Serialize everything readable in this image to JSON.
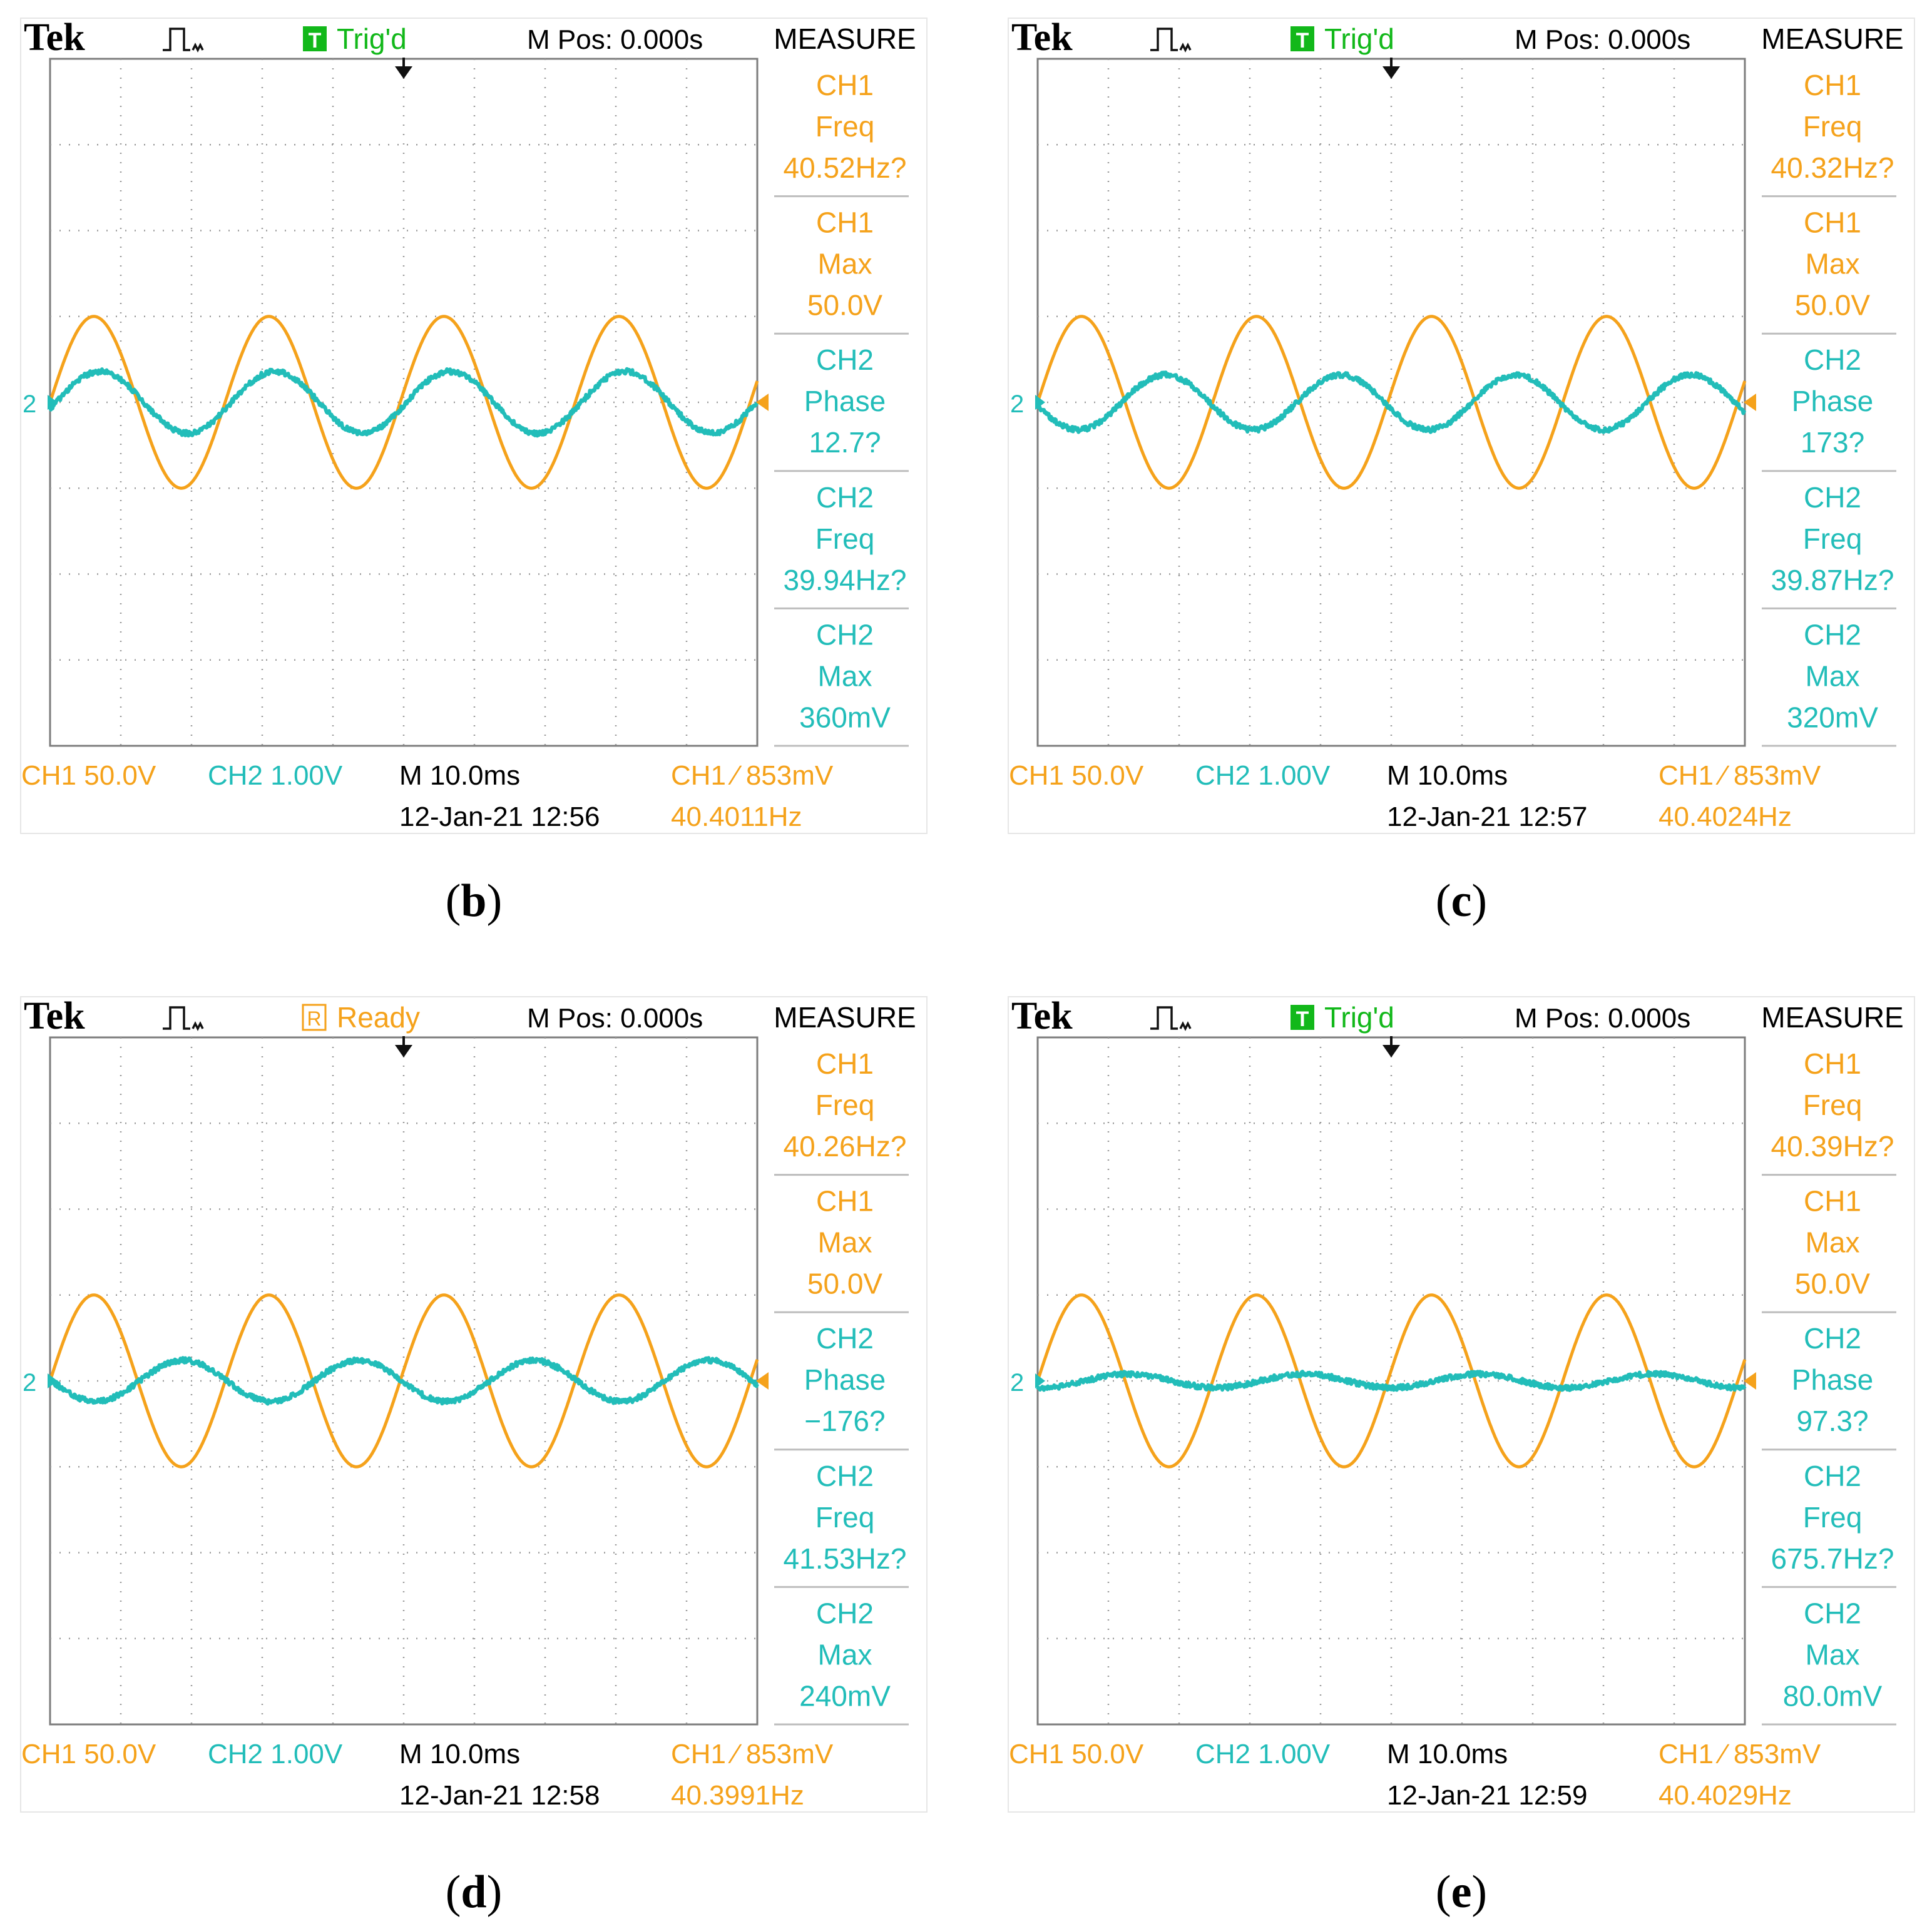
{
  "colors": {
    "ch1": "#F5A21B",
    "ch2": "#22BDB9",
    "grid": "#9a9a9a",
    "trig_green": "#12B81A",
    "text": "#000000"
  },
  "chart_data": [
    {
      "type": "line",
      "caption_letter": "b",
      "brand": "Tek",
      "trigger_status": "Trig'd",
      "trigger_badge": "T",
      "trigger_kind": "green",
      "mpos": "M Pos: 0.000s",
      "measure_title": "MEASURE",
      "measurements": [
        {
          "channel": "CH1",
          "name": "Freq",
          "value": "40.52Hz?",
          "color": "ch1"
        },
        {
          "channel": "CH1",
          "name": "Max",
          "value": "50.0V",
          "color": "ch1"
        },
        {
          "channel": "CH2",
          "name": "Phase",
          "value": "12.7?",
          "color": "ch2"
        },
        {
          "channel": "CH2",
          "name": "Freq",
          "value": "39.94Hz?",
          "color": "ch2"
        },
        {
          "channel": "CH2",
          "name": "Max",
          "value": "360mV",
          "color": "ch2"
        }
      ],
      "ch1_scale": "CH1  50.0V",
      "ch2_scale": "CH2  1.00V",
      "timebase": "M 10.0ms",
      "trigger_label": "CH1 ∕ 853mV",
      "datetime": "12-Jan-21 12:56",
      "trigger_freq": "40.4011Hz",
      "x_divisions": 10,
      "y_divisions": 8,
      "series": [
        {
          "channel": "CH1",
          "amplitude_div": 1.0,
          "phase_deg": 0,
          "cycles": 4.04
        },
        {
          "channel": "CH2",
          "amplitude_div": 0.36,
          "phase_deg": 12.7,
          "cycles": 4.04
        }
      ]
    },
    {
      "type": "line",
      "caption_letter": "c",
      "brand": "Tek",
      "trigger_status": "Trig'd",
      "trigger_badge": "T",
      "trigger_kind": "green",
      "mpos": "M Pos: 0.000s",
      "measure_title": "MEASURE",
      "measurements": [
        {
          "channel": "CH1",
          "name": "Freq",
          "value": "40.32Hz?",
          "color": "ch1"
        },
        {
          "channel": "CH1",
          "name": "Max",
          "value": "50.0V",
          "color": "ch1"
        },
        {
          "channel": "CH2",
          "name": "Phase",
          "value": "173?",
          "color": "ch2"
        },
        {
          "channel": "CH2",
          "name": "Freq",
          "value": "39.87Hz?",
          "color": "ch2"
        },
        {
          "channel": "CH2",
          "name": "Max",
          "value": "320mV",
          "color": "ch2"
        }
      ],
      "ch1_scale": "CH1  50.0V",
      "ch2_scale": "CH2  1.00V",
      "timebase": "M 10.0ms",
      "trigger_label": "CH1 ∕ 853mV",
      "datetime": "12-Jan-21 12:57",
      "trigger_freq": "40.4024Hz",
      "x_divisions": 10,
      "y_divisions": 8,
      "series": [
        {
          "channel": "CH1",
          "amplitude_div": 1.0,
          "phase_deg": 0,
          "cycles": 4.04
        },
        {
          "channel": "CH2",
          "amplitude_div": 0.32,
          "phase_deg": 173,
          "cycles": 4.04
        }
      ]
    },
    {
      "type": "line",
      "caption_letter": "d",
      "brand": "Tek",
      "trigger_status": "Ready",
      "trigger_badge": "R",
      "trigger_kind": "orange",
      "mpos": "M Pos: 0.000s",
      "measure_title": "MEASURE",
      "measurements": [
        {
          "channel": "CH1",
          "name": "Freq",
          "value": "40.26Hz?",
          "color": "ch1"
        },
        {
          "channel": "CH1",
          "name": "Max",
          "value": "50.0V",
          "color": "ch1"
        },
        {
          "channel": "CH2",
          "name": "Phase",
          "value": "−176?",
          "color": "ch2"
        },
        {
          "channel": "CH2",
          "name": "Freq",
          "value": "41.53Hz?",
          "color": "ch2"
        },
        {
          "channel": "CH2",
          "name": "Max",
          "value": "240mV",
          "color": "ch2"
        }
      ],
      "ch1_scale": "CH1  50.0V",
      "ch2_scale": "CH2  1.00V",
      "timebase": "M 10.0ms",
      "trigger_label": "CH1 ∕ 853mV",
      "datetime": "12-Jan-21 12:58",
      "trigger_freq": "40.3991Hz",
      "x_divisions": 10,
      "y_divisions": 8,
      "series": [
        {
          "channel": "CH1",
          "amplitude_div": 1.0,
          "phase_deg": 0,
          "cycles": 4.04
        },
        {
          "channel": "CH2",
          "amplitude_div": 0.24,
          "phase_deg": -176,
          "cycles": 4.04
        }
      ]
    },
    {
      "type": "line",
      "caption_letter": "e",
      "brand": "Tek",
      "trigger_status": "Trig'd",
      "trigger_badge": "T",
      "trigger_kind": "green",
      "mpos": "M Pos: 0.000s",
      "measure_title": "MEASURE",
      "measurements": [
        {
          "channel": "CH1",
          "name": "Freq",
          "value": "40.39Hz?",
          "color": "ch1"
        },
        {
          "channel": "CH1",
          "name": "Max",
          "value": "50.0V",
          "color": "ch1"
        },
        {
          "channel": "CH2",
          "name": "Phase",
          "value": "97.3?",
          "color": "ch2"
        },
        {
          "channel": "CH2",
          "name": "Freq",
          "value": "675.7Hz?",
          "color": "ch2"
        },
        {
          "channel": "CH2",
          "name": "Max",
          "value": "80.0mV",
          "color": "ch2"
        }
      ],
      "ch1_scale": "CH1  50.0V",
      "ch2_scale": "CH2  1.00V",
      "timebase": "M 10.0ms",
      "trigger_label": "CH1 ∕ 853mV",
      "datetime": "12-Jan-21 12:59",
      "trigger_freq": "40.4029Hz",
      "x_divisions": 10,
      "y_divisions": 8,
      "series": [
        {
          "channel": "CH1",
          "amplitude_div": 1.0,
          "phase_deg": 0,
          "cycles": 4.04
        },
        {
          "channel": "CH2",
          "amplitude_div": 0.08,
          "phase_deg": 97.3,
          "cycles": 4.04
        }
      ]
    }
  ]
}
